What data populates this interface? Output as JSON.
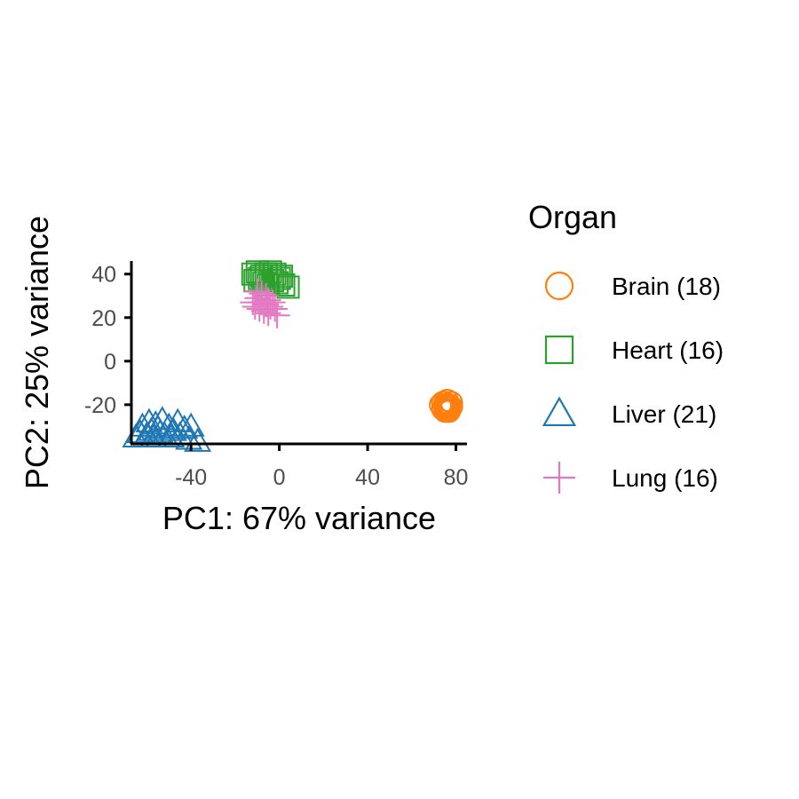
{
  "chart_data": {
    "type": "scatter",
    "title": "",
    "xlabel": "PC1: 67% variance",
    "ylabel": "PC2: 25% variance",
    "xlim": [
      -67,
      85
    ],
    "ylim": [
      -38,
      46
    ],
    "xticks": [
      -40,
      0,
      40,
      80
    ],
    "xtick_labels": [
      "-40",
      "0",
      "40",
      "80"
    ],
    "yticks": [
      -20,
      0,
      20,
      40
    ],
    "ytick_labels": [
      "-20",
      "0",
      "20",
      "40"
    ],
    "grid": false,
    "legend": {
      "title": "Organ",
      "placement": "right"
    },
    "series": [
      {
        "name": "Brain (18)",
        "shape": "circle",
        "color": "#ff7f0e",
        "points": [
          [
            74,
            -19
          ],
          [
            75,
            -21
          ],
          [
            76,
            -20
          ],
          [
            77,
            -22
          ],
          [
            75,
            -23
          ],
          [
            76,
            -18
          ],
          [
            78,
            -21
          ],
          [
            77,
            -20
          ],
          [
            74,
            -22
          ],
          [
            76,
            -23
          ],
          [
            78,
            -19
          ],
          [
            75,
            -20
          ],
          [
            77,
            -23
          ],
          [
            76,
            -21
          ],
          [
            73,
            -20
          ],
          [
            75,
            -19
          ],
          [
            77,
            -21
          ],
          [
            76,
            -22
          ]
        ]
      },
      {
        "name": "Heart (16)",
        "shape": "square",
        "color": "#2ca02c",
        "points": [
          [
            -12,
            40
          ],
          [
            -10,
            41
          ],
          [
            -8,
            39
          ],
          [
            -6,
            40
          ],
          [
            -4,
            41
          ],
          [
            -2,
            40
          ],
          [
            -11,
            37
          ],
          [
            -7,
            36
          ],
          [
            -3,
            37
          ],
          [
            0,
            38
          ],
          [
            2,
            35
          ],
          [
            4,
            34
          ],
          [
            -5,
            35
          ],
          [
            -1,
            36
          ],
          [
            -9,
            38
          ],
          [
            1,
            39
          ]
        ]
      },
      {
        "name": "Liver (21)",
        "shape": "triangle",
        "color": "#1f77b4",
        "points": [
          [
            -65,
            -35
          ],
          [
            -63,
            -33
          ],
          [
            -62,
            -30
          ],
          [
            -60,
            -34
          ],
          [
            -59,
            -28
          ],
          [
            -58,
            -32
          ],
          [
            -57,
            -35
          ],
          [
            -56,
            -29
          ],
          [
            -55,
            -31
          ],
          [
            -54,
            -33
          ],
          [
            -53,
            -27
          ],
          [
            -52,
            -34
          ],
          [
            -50,
            -30
          ],
          [
            -49,
            -35
          ],
          [
            -48,
            -32
          ],
          [
            -46,
            -28
          ],
          [
            -45,
            -34
          ],
          [
            -43,
            -31
          ],
          [
            -41,
            -36
          ],
          [
            -40,
            -30
          ],
          [
            -37,
            -37
          ]
        ]
      },
      {
        "name": "Lung (16)",
        "shape": "cross",
        "color": "#e377c2",
        "points": [
          [
            -12,
            27
          ],
          [
            -11,
            25
          ],
          [
            -10,
            29
          ],
          [
            -9,
            24
          ],
          [
            -8,
            27
          ],
          [
            -8,
            31
          ],
          [
            -7,
            23
          ],
          [
            -6,
            26
          ],
          [
            -5,
            28
          ],
          [
            -5,
            22
          ],
          [
            -4,
            25
          ],
          [
            -3,
            27
          ],
          [
            -2,
            24
          ],
          [
            -10,
            32
          ],
          [
            -6,
            30
          ],
          [
            -1,
            21
          ]
        ]
      }
    ]
  }
}
